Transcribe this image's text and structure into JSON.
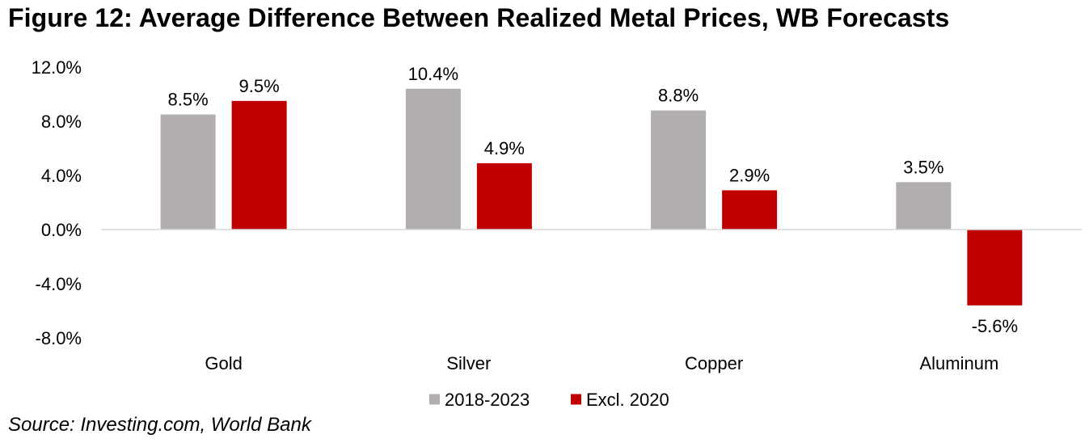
{
  "figure": {
    "title": "Figure 12: Average Difference Between Realized Metal Prices, WB Forecasts",
    "source": "Source: Investing.com, World Bank"
  },
  "chart_data": {
    "type": "bar",
    "title": "Figure 12: Average Difference Between Realized Metal Prices, WB Forecasts",
    "xlabel": "",
    "ylabel": "",
    "categories": [
      "Gold",
      "Silver",
      "Copper",
      "Aluminum"
    ],
    "series": [
      {
        "name": "2018-2023",
        "color": "#B1AEAD",
        "values": [
          8.5,
          10.4,
          8.8,
          3.5
        ]
      },
      {
        "name": "Excl. 2020",
        "color": "#C00000",
        "values": [
          9.5,
          4.9,
          2.9,
          -5.6
        ]
      }
    ],
    "value_labels": [
      [
        "8.5%",
        "10.4%",
        "8.8%",
        "3.5%"
      ],
      [
        "9.5%",
        "4.9%",
        "2.9%",
        "-5.6%"
      ]
    ],
    "ylim": [
      -8,
      12
    ],
    "yticks": [
      12,
      8,
      4,
      0,
      -4,
      -8
    ],
    "ytick_labels": [
      "12.0%",
      "8.0%",
      "4.0%",
      "0.0%",
      "-4.0%",
      "-8.0%"
    ],
    "grid": false,
    "legend": "bottom-center"
  }
}
